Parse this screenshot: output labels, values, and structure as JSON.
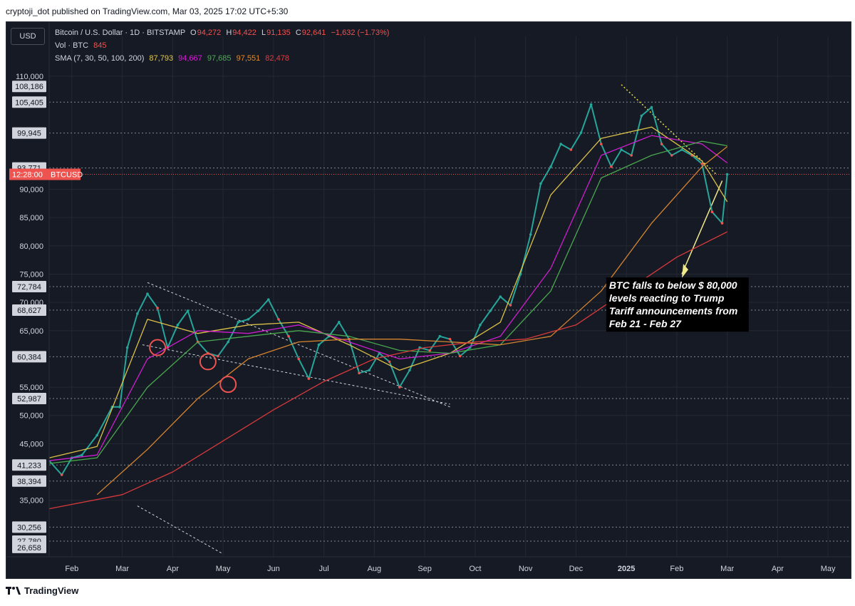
{
  "header": {
    "text": "cryptoji_dot published on TradingView.com, Mar 03, 2025 17:02 UTC+5:30"
  },
  "chart_header": {
    "currency_button": "USD",
    "title_row": {
      "name": "Bitcoin / U.S. Dollar · 1D · BITSTAMP",
      "o_label": "O",
      "o_value": "94,272",
      "h_label": "H",
      "h_value": "94,422",
      "l_label": "L",
      "l_value": "91,135",
      "c_label": "C",
      "c_value": "92,641",
      "change": "−1,632 (−1.73%)"
    },
    "volume_row": {
      "label": "Vol · BTC",
      "value": "845"
    },
    "sma_row": {
      "label": "SMA (7, 30, 50, 100, 200)",
      "values": [
        "87,793",
        "94,667",
        "97,685",
        "97,551",
        "82,478"
      ]
    }
  },
  "annotation": {
    "lines": [
      "BTC falls to below $ 80,000",
      " levels reacting to Trump",
      "Tariff announcements from",
      "Feb 21 - Feb 27"
    ]
  },
  "footer": {
    "logo_text": "TradingView"
  },
  "colors": {
    "background": "#161a25",
    "grid": "#242833",
    "up": "#26a69a",
    "down": "#ef5350",
    "sma7": "#e6c94a",
    "sma30": "#d61fd6",
    "sma50": "#4caf50",
    "sma100": "#e08a2e",
    "sma200": "#e23b3b",
    "label_box": "#ffffff"
  },
  "chart_data": {
    "type": "line",
    "title": "Bitcoin / U.S. Dollar · 1D · BITSTAMP",
    "y_axis_ticks": [
      "110,000",
      "90,000",
      "85,000",
      "80,000",
      "75,000",
      "70,000",
      "65,000",
      "55,000",
      "50,000",
      "45,000",
      "35,000"
    ],
    "y_axis_tick_values": [
      110000,
      90000,
      85000,
      80000,
      75000,
      70000,
      65000,
      55000,
      50000,
      45000,
      35000
    ],
    "price_labels": [
      "108,186",
      "105,405",
      "99,945",
      "93,771",
      "72,784",
      "68,627",
      "60,384",
      "52,987",
      "41,233",
      "38,394",
      "30,256",
      "27,780",
      "26,658"
    ],
    "price_label_values": [
      108186,
      105405,
      99945,
      93771,
      72784,
      68627,
      60384,
      52987,
      41233,
      38394,
      30256,
      27780,
      26658
    ],
    "dotted_levels": [
      105405,
      99945,
      93771,
      72784,
      68627,
      60384,
      52987,
      41233,
      38394,
      30256,
      27780
    ],
    "current_price_tag": {
      "time": "12:28:00",
      "symbol": "BTCUSD",
      "price": 92641
    },
    "x_axis_ticks": [
      "Feb",
      "Mar",
      "Apr",
      "May",
      "Jun",
      "Jul",
      "Aug",
      "Sep",
      "Oct",
      "Nov",
      "Dec",
      "2025",
      "Feb",
      "Mar",
      "Apr",
      "May"
    ],
    "x_axis_tick_months": [
      1,
      2,
      3,
      4,
      5,
      6,
      7,
      8,
      9,
      10,
      11,
      12,
      13,
      14,
      15,
      16
    ],
    "ylim": [
      25000,
      112000
    ],
    "xlim": [
      0.55,
      16.45
    ],
    "series": [
      {
        "name": "BTC close",
        "x": [
          0.55,
          0.8,
          1.0,
          1.2,
          1.5,
          1.8,
          1.95,
          2.1,
          2.3,
          2.5,
          2.7,
          2.9,
          3.1,
          3.3,
          3.5,
          3.7,
          3.9,
          4.1,
          4.3,
          4.5,
          4.7,
          4.9,
          5.1,
          5.3,
          5.5,
          5.7,
          5.9,
          6.1,
          6.3,
          6.5,
          6.7,
          6.9,
          7.1,
          7.3,
          7.5,
          7.7,
          7.9,
          8.1,
          8.3,
          8.5,
          8.7,
          8.9,
          9.1,
          9.3,
          9.5,
          9.7,
          9.9,
          10.1,
          10.3,
          10.5,
          10.7,
          10.9,
          11.1,
          11.3,
          11.5,
          11.7,
          11.9,
          12.1,
          12.3,
          12.5,
          12.7,
          12.9,
          13.1,
          13.3,
          13.5,
          13.7,
          13.9,
          14.0
        ],
        "values": [
          42000,
          39500,
          42500,
          43000,
          46500,
          51500,
          51500,
          62000,
          68000,
          71500,
          69000,
          62000,
          66000,
          68500,
          63000,
          61000,
          60500,
          63000,
          66500,
          67000,
          68500,
          70500,
          67000,
          64000,
          60000,
          56500,
          62500,
          64000,
          66500,
          63500,
          57500,
          58000,
          61000,
          59500,
          55000,
          58000,
          62000,
          61500,
          64000,
          63500,
          60500,
          62000,
          66000,
          68500,
          71000,
          69500,
          75000,
          82000,
          91000,
          94000,
          98000,
          97000,
          100000,
          105000,
          98000,
          94000,
          97000,
          96000,
          103000,
          104500,
          98000,
          96000,
          97000,
          96000,
          94500,
          86000,
          84000,
          92641
        ]
      },
      {
        "name": "SMA 7",
        "x": [
          0.55,
          1.5,
          2.5,
          3.5,
          4.5,
          5.5,
          6.5,
          7.5,
          8.5,
          9.5,
          10.5,
          11.5,
          12.5,
          13.5,
          14.0
        ],
        "values": [
          42500,
          44500,
          67000,
          64500,
          66000,
          66500,
          62500,
          58000,
          61000,
          66500,
          89000,
          99000,
          101000,
          95000,
          87793
        ]
      },
      {
        "name": "SMA 30",
        "x": [
          0.55,
          1.5,
          2.5,
          3.5,
          4.5,
          5.5,
          6.5,
          7.5,
          8.5,
          9.5,
          10.5,
          11.5,
          12.5,
          13.5,
          14.0
        ],
        "values": [
          42000,
          43000,
          60000,
          65000,
          64500,
          66000,
          63000,
          60000,
          61000,
          64000,
          76000,
          96000,
          99500,
          98000,
          94667
        ]
      },
      {
        "name": "SMA 50",
        "x": [
          0.55,
          1.5,
          2.5,
          3.5,
          4.5,
          5.5,
          6.5,
          7.5,
          8.5,
          9.5,
          10.5,
          11.5,
          12.5,
          13.5,
          14.0
        ],
        "values": [
          41500,
          42500,
          55000,
          63000,
          64000,
          65000,
          64000,
          61500,
          61000,
          62500,
          72000,
          92000,
          96000,
          98500,
          97685
        ]
      },
      {
        "name": "SMA 100",
        "x": [
          1.5,
          2.5,
          3.5,
          4.5,
          5.5,
          6.5,
          7.5,
          8.5,
          9.5,
          10.5,
          11.5,
          12.5,
          13.5,
          14.0
        ],
        "values": [
          36000,
          44000,
          53000,
          60000,
          63000,
          63500,
          63500,
          63000,
          62500,
          64000,
          72000,
          84000,
          94000,
          97551
        ]
      },
      {
        "name": "SMA 200",
        "x": [
          0.55,
          2.0,
          3.0,
          4.0,
          5.0,
          6.0,
          7.0,
          8.0,
          9.0,
          10.0,
          11.0,
          12.0,
          13.0,
          14.0
        ],
        "values": [
          33500,
          36000,
          40000,
          45500,
          51000,
          56000,
          60000,
          62000,
          63000,
          63500,
          66000,
          72000,
          78000,
          82478
        ]
      }
    ],
    "circled_lows": [
      {
        "x": 2.7,
        "value": 62000
      },
      {
        "x": 3.7,
        "value": 59500
      },
      {
        "x": 4.1,
        "value": 55500
      }
    ]
  }
}
